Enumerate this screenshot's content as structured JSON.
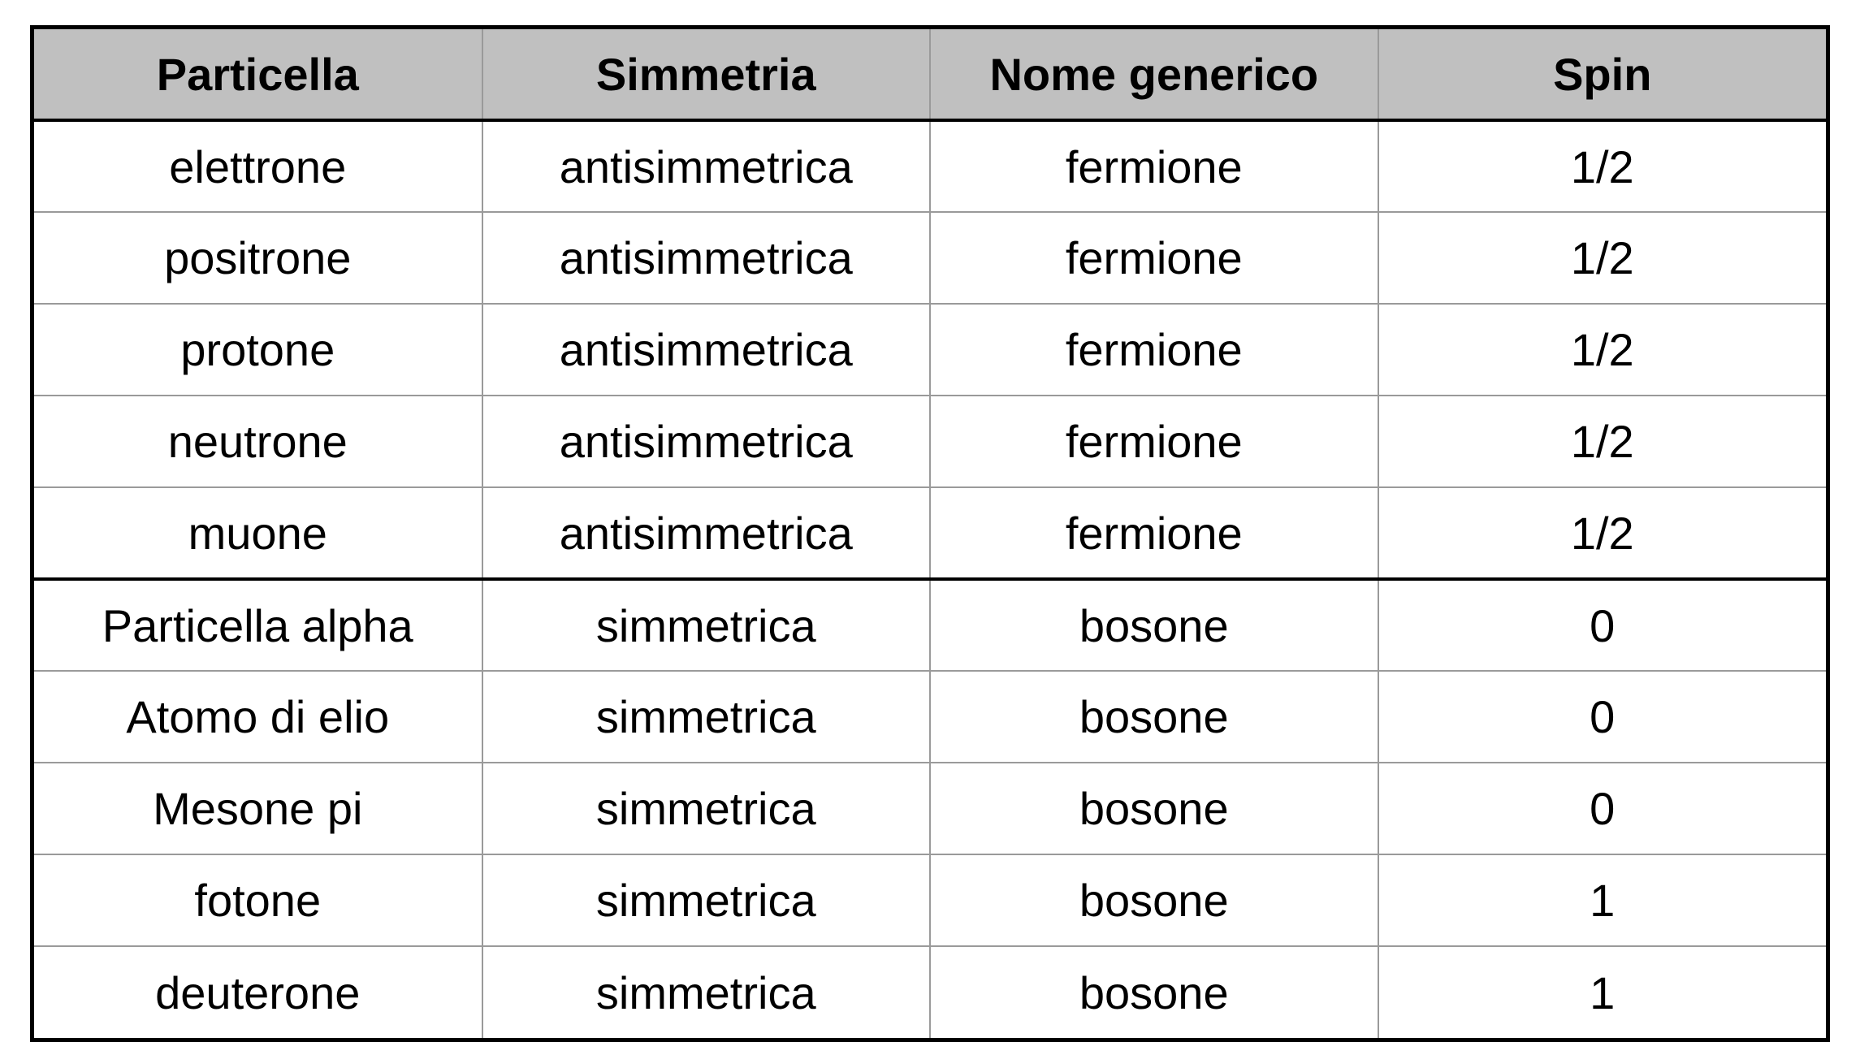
{
  "table": {
    "headers": [
      "Particella",
      "Simmetria",
      "Nome generico",
      "Spin"
    ],
    "rows": [
      [
        "elettrone",
        "antisimmetrica",
        "fermione",
        "1/2"
      ],
      [
        "positrone",
        "antisimmetrica",
        "fermione",
        "1/2"
      ],
      [
        "protone",
        "antisimmetrica",
        "fermione",
        "1/2"
      ],
      [
        "neutrone",
        "antisimmetrica",
        "fermione",
        "1/2"
      ],
      [
        "muone",
        "antisimmetrica",
        "fermione",
        "1/2"
      ],
      [
        "Particella alpha",
        "simmetrica",
        "bosone",
        "0"
      ],
      [
        "Atomo di elio",
        "simmetrica",
        "bosone",
        "0"
      ],
      [
        "Mesone pi",
        "simmetrica",
        "bosone",
        "0"
      ],
      [
        "fotone",
        "simmetrica",
        "bosone",
        "1"
      ],
      [
        "deuterone",
        "simmetrica",
        "bosone",
        "1"
      ]
    ]
  },
  "colors": {
    "header_background": "#c0c0c0",
    "border": "#000000",
    "grid": "#9a9a9a"
  }
}
